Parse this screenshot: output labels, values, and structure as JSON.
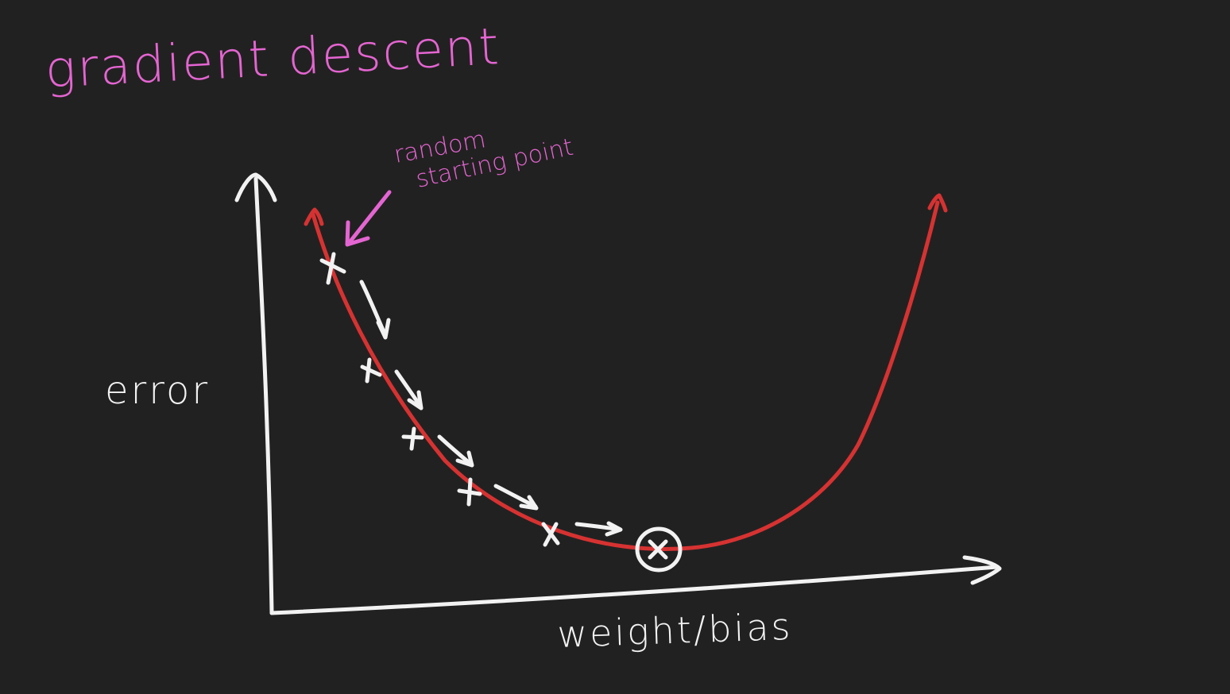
{
  "title": "gradient descent",
  "annotation": {
    "line1": "random",
    "line2": "starting point"
  },
  "axes": {
    "ylabel": "error",
    "xlabel": "weight/bias"
  },
  "colors": {
    "background": "#222121",
    "curve": "#d63232",
    "ink_white": "#f2f2f2",
    "ink_pink": "#e465d2"
  },
  "steps": {
    "marker": "×",
    "count": 6,
    "final_marker": "circled-x"
  }
}
